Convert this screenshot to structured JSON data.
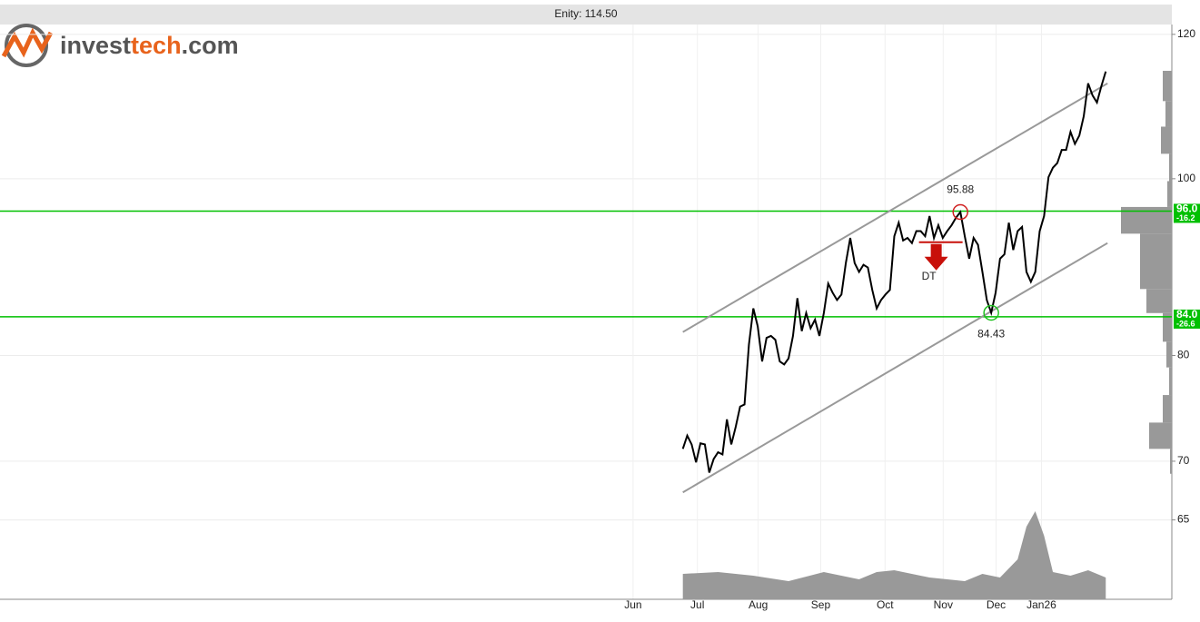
{
  "chart_data": {
    "type": "line",
    "title": "Enity: 114.50",
    "logo": [
      "invest",
      "tech",
      ".com"
    ],
    "log_scale": true,
    "grid": true,
    "xlim": [
      -155,
      111
    ],
    "ylim": [
      58.8,
      121.5
    ],
    "yticks": [
      120,
      100,
      80,
      70,
      65
    ],
    "xticks": [
      {
        "value": -11.3,
        "label": "Jun"
      },
      {
        "value": 3.3,
        "label": "Jul"
      },
      {
        "value": 17.1,
        "label": "Aug"
      },
      {
        "value": 31.3,
        "label": "Sep"
      },
      {
        "value": 45.9,
        "label": "Oct"
      },
      {
        "value": 59.1,
        "label": "Nov"
      },
      {
        "value": 71.1,
        "label": "Dec"
      },
      {
        "value": 81.4,
        "label": "Jan26"
      }
    ],
    "series": [
      {
        "color": "#000000",
        "x": [
          0,
          1,
          2,
          3,
          4,
          5,
          6,
          7,
          8,
          9,
          10,
          11,
          12,
          13,
          14,
          15,
          16,
          17,
          18,
          19,
          20,
          21,
          22,
          23,
          24,
          25,
          26,
          27,
          28,
          29,
          30,
          31,
          32,
          33,
          34,
          35,
          36,
          37,
          38,
          39,
          40,
          41,
          42,
          43,
          44,
          45,
          46,
          47,
          48,
          49,
          50,
          51,
          52,
          53,
          54,
          55,
          56,
          57,
          58,
          59,
          60,
          61,
          62,
          63,
          64,
          65,
          66,
          67,
          68,
          69,
          70,
          71,
          72,
          73,
          74,
          75,
          76,
          77,
          78,
          79,
          80,
          81,
          82,
          83,
          84,
          85,
          86,
          87,
          88,
          89,
          90,
          91,
          92,
          93,
          94,
          95,
          96
        ],
        "values": [
          71.1,
          72.3,
          71.5,
          69.9,
          71.6,
          71.5,
          69.0,
          70.2,
          70.8,
          70.6,
          73.8,
          71.5,
          73.1,
          75.0,
          75.2,
          81.1,
          84.9,
          83.0,
          79.4,
          81.8,
          82.0,
          81.6,
          79.4,
          79.1,
          79.7,
          82.0,
          86.0,
          82.5,
          84.4,
          82.8,
          83.7,
          82.0,
          84.4,
          87.6,
          86.6,
          85.8,
          86.4,
          89.9,
          92.8,
          89.9,
          88.9,
          89.7,
          89.4,
          86.9,
          84.9,
          85.8,
          86.4,
          86.9,
          93.0,
          94.6,
          92.5,
          92.8,
          92.2,
          93.6,
          93.6,
          93.0,
          95.4,
          92.8,
          94.3,
          92.8,
          93.6,
          94.3,
          95.2,
          95.88,
          93.0,
          90.4,
          92.8,
          92.0,
          88.9,
          85.8,
          84.43,
          86.6,
          90.4,
          90.9,
          94.6,
          91.4,
          93.6,
          94.1,
          88.9,
          87.8,
          88.9,
          93.6,
          95.4,
          100.2,
          101.4,
          102.0,
          103.7,
          103.7,
          106.1,
          104.5,
          105.6,
          108.2,
          112.8,
          111.1,
          110.1,
          112.4,
          114.5
        ]
      }
    ],
    "trend_lines": [
      {
        "color": "#999999",
        "x": [
          0,
          96.4
        ],
        "values": [
          82.4,
          112.8
        ]
      },
      {
        "color": "#999999",
        "x": [
          0,
          96.4
        ],
        "values": [
          67.3,
          92.2
        ]
      }
    ],
    "levels": [
      {
        "value": 96.0,
        "label": "96.0",
        "change": "-16.2",
        "color": "#00c000"
      },
      {
        "value": 84.0,
        "label": "84.0",
        "change": "-26.6",
        "color": "#00c000"
      }
    ],
    "extremes": [
      {
        "x": 63,
        "value": 95.88,
        "color": "#d02020",
        "side": "above"
      },
      {
        "x": 70,
        "value": 84.43,
        "color": "#20c020",
        "side": "below"
      }
    ],
    "signal": {
      "label": "DT",
      "x": [
        53.6,
        63.5
      ],
      "value": 92.3,
      "color": "#c8100a"
    },
    "volume": {
      "color": "#999999",
      "ylim": [
        0,
        100
      ],
      "x": [
        0,
        8,
        16,
        24,
        32,
        40,
        44,
        48,
        56,
        64,
        68,
        72,
        76,
        78,
        80,
        82,
        84,
        88,
        92,
        96
      ],
      "values": [
        28,
        30,
        26,
        20,
        30,
        22,
        30,
        32,
        24,
        20,
        28,
        24,
        44,
        80,
        97,
        70,
        30,
        26,
        32,
        24
      ]
    },
    "price_volume": {
      "color": "#999999",
      "max": 60,
      "bins": [
        114.6,
        110.3,
        106.8,
        103.2,
        99.7,
        96.5,
        93.3,
        87.0,
        84.4,
        81.4,
        78.8,
        76.1,
        73.5,
        71.1,
        68.9
      ],
      "counts": [
        10,
        7,
        12,
        3,
        5,
        56,
        35,
        28,
        10,
        6,
        3,
        10,
        25,
        2
      ]
    }
  }
}
